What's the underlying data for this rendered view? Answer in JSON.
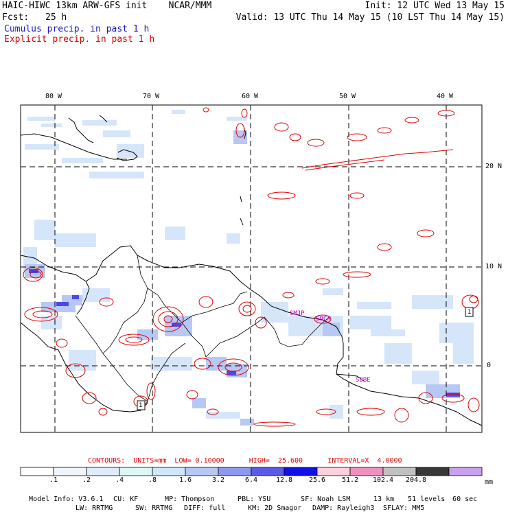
{
  "header": {
    "line1_left": "HAIC-HIWC 13km ARW-GFS init    NCAR/MMM",
    "line1_right": "Init: 12 UTC Wed 13 May 15",
    "line2_left_label": "Fcst:",
    "line2_left_value": "25 h",
    "line2_right": "Valid: 13 UTC Thu 14 May 15 (10 LST Thu 14 May 15)",
    "cumulus_label": "Cumulus precip. in past 1 h",
    "explicit_label": "Explicit precip. in past 1 h"
  },
  "map": {
    "lon_labels": [
      "80 W",
      "70 W",
      "60 W",
      "50 W",
      "40 W"
    ],
    "lat_labels": [
      "20 N",
      "10 N",
      "0"
    ],
    "station_labels": [
      "SMJP",
      "SOCA",
      "SBBE"
    ],
    "box_labels": [
      "1",
      "1"
    ]
  },
  "contours": {
    "text": "CONTOURS:  UNITS=mm  LOW= 0.10000      HIGH=  25.600      INTERVAL=X  4.0000"
  },
  "colorbar": {
    "labels": [
      ".1",
      ".2",
      ".4",
      ".8",
      "1.6",
      "3.2",
      "6.4",
      "12.8",
      "25.6",
      "51.2",
      "102.4",
      "204.8"
    ],
    "unit": "mm",
    "colors": [
      "#ffffff",
      "#f0f4fc",
      "#e0ecfa",
      "#ddf6f6",
      "#d0e6fa",
      "#b8c8f5",
      "#8f98ef",
      "#5a5ae8",
      "#1010e8",
      "#fcd0dc",
      "#f090c0",
      "#c0c0c0",
      "#383838",
      "#c8a0f0"
    ]
  },
  "model_info": {
    "model": "Model Info: V3.6.1",
    "cu": "CU: KF",
    "mp": "MP: Thompson",
    "pbl": "PBL: YSU",
    "sf": "SF: Noah LSM",
    "res": "13 km",
    "levels": "51 levels",
    "dt": "60 sec",
    "lw": "LW: RRTMG",
    "sw": "SW: RRTMG",
    "diff": "DIFF: full",
    "km": "KM: 2D Smagor",
    "damp": "DAMP: Rayleigh3",
    "sflay": "SFLAY: MM5"
  }
}
